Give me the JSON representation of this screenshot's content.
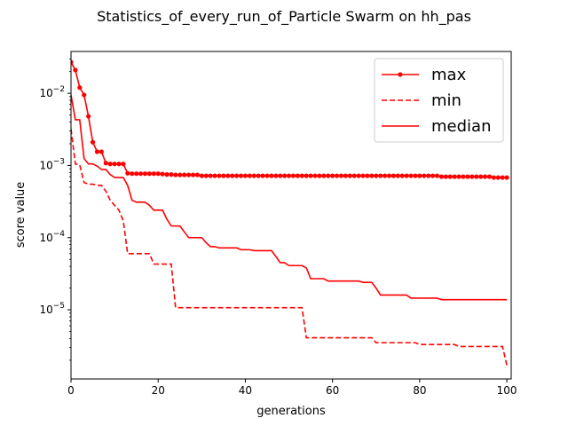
{
  "chart_data": {
    "type": "line",
    "title": "Statistics_of_every_run_of_Particle Swarm on hh_pas",
    "xlabel": "generations",
    "ylabel": "score value",
    "xlim": [
      0,
      101
    ],
    "ylim": [
      1.1e-06,
      0.038
    ],
    "yscale": "log",
    "grid": false,
    "legend_position": "top-right",
    "x_ticks": [
      "0",
      "20",
      "40",
      "60",
      "80",
      "100"
    ],
    "y_ticks": [
      "10^-5",
      "10^-4",
      "10^-3",
      "10^-2"
    ],
    "series": [
      {
        "name": "max",
        "color": "#ff0000",
        "style": "solid-marker",
        "points": [
          [
            0,
            0.027
          ],
          [
            1,
            0.021
          ],
          [
            2,
            0.012
          ],
          [
            3,
            0.0095
          ],
          [
            4,
            0.0048
          ],
          [
            5,
            0.0021
          ],
          [
            6,
            0.00155
          ],
          [
            7,
            0.00155
          ],
          [
            8,
            0.00108
          ],
          [
            9,
            0.00105
          ],
          [
            10,
            0.00105
          ],
          [
            11,
            0.00105
          ],
          [
            12,
            0.00105
          ],
          [
            13,
            0.00078
          ],
          [
            14,
            0.00077
          ],
          [
            15,
            0.00077
          ],
          [
            16,
            0.00077
          ],
          [
            17,
            0.00077
          ],
          [
            18,
            0.00077
          ],
          [
            19,
            0.00077
          ],
          [
            20,
            0.00077
          ],
          [
            21,
            0.00076
          ],
          [
            22,
            0.00075
          ],
          [
            23,
            0.00075
          ],
          [
            24,
            0.00074
          ],
          [
            25,
            0.00074
          ],
          [
            26,
            0.00074
          ],
          [
            27,
            0.00074
          ],
          [
            28,
            0.00074
          ],
          [
            29,
            0.00074
          ],
          [
            30,
            0.00072
          ],
          [
            31,
            0.00072
          ],
          [
            32,
            0.00072
          ],
          [
            33,
            0.00072
          ],
          [
            34,
            0.00072
          ],
          [
            35,
            0.00072
          ],
          [
            36,
            0.00072
          ],
          [
            37,
            0.00072
          ],
          [
            38,
            0.00072
          ],
          [
            39,
            0.00072
          ],
          [
            40,
            0.00072
          ],
          [
            41,
            0.00072
          ],
          [
            42,
            0.00072
          ],
          [
            43,
            0.00072
          ],
          [
            44,
            0.00072
          ],
          [
            45,
            0.00072
          ],
          [
            46,
            0.00072
          ],
          [
            47,
            0.00072
          ],
          [
            48,
            0.00072
          ],
          [
            49,
            0.00072
          ],
          [
            50,
            0.00072
          ],
          [
            51,
            0.00072
          ],
          [
            52,
            0.00072
          ],
          [
            53,
            0.00072
          ],
          [
            54,
            0.00072
          ],
          [
            55,
            0.00072
          ],
          [
            56,
            0.00072
          ],
          [
            57,
            0.00072
          ],
          [
            58,
            0.00072
          ],
          [
            59,
            0.00072
          ],
          [
            60,
            0.00072
          ],
          [
            61,
            0.00072
          ],
          [
            62,
            0.00072
          ],
          [
            63,
            0.00072
          ],
          [
            64,
            0.00072
          ],
          [
            65,
            0.00072
          ],
          [
            66,
            0.00072
          ],
          [
            67,
            0.00072
          ],
          [
            68,
            0.00072
          ],
          [
            69,
            0.00072
          ],
          [
            70,
            0.00072
          ],
          [
            71,
            0.00072
          ],
          [
            72,
            0.00072
          ],
          [
            73,
            0.00072
          ],
          [
            74,
            0.00072
          ],
          [
            75,
            0.00072
          ],
          [
            76,
            0.00072
          ],
          [
            77,
            0.00072
          ],
          [
            78,
            0.00072
          ],
          [
            79,
            0.00072
          ],
          [
            80,
            0.00072
          ],
          [
            81,
            0.00072
          ],
          [
            82,
            0.00072
          ],
          [
            83,
            0.00072
          ],
          [
            84,
            0.00072
          ],
          [
            85,
            0.0007
          ],
          [
            86,
            0.0007
          ],
          [
            87,
            0.0007
          ],
          [
            88,
            0.0007
          ],
          [
            89,
            0.0007
          ],
          [
            90,
            0.0007
          ],
          [
            91,
            0.0007
          ],
          [
            92,
            0.0007
          ],
          [
            93,
            0.0007
          ],
          [
            94,
            0.0007
          ],
          [
            95,
            0.0007
          ],
          [
            96,
            0.0007
          ],
          [
            97,
            0.00068
          ],
          [
            98,
            0.00068
          ],
          [
            99,
            0.00068
          ],
          [
            100,
            0.00068
          ]
        ]
      },
      {
        "name": "min",
        "color": "#ff0000",
        "style": "dashed",
        "points": [
          [
            0,
            0.0032
          ],
          [
            1,
            0.00105
          ],
          [
            2,
            0.00102
          ],
          [
            3,
            0.00058
          ],
          [
            4,
            0.00055
          ],
          [
            5,
            0.00055
          ],
          [
            6,
            0.00053
          ],
          [
            7,
            0.00053
          ],
          [
            8,
            0.00044
          ],
          [
            9,
            0.00033
          ],
          [
            10,
            0.00028
          ],
          [
            11,
            0.00024
          ],
          [
            12,
            0.00017
          ],
          [
            13,
            6e-05
          ],
          [
            14,
            6e-05
          ],
          [
            15,
            6e-05
          ],
          [
            16,
            6e-05
          ],
          [
            17,
            6e-05
          ],
          [
            18,
            6e-05
          ],
          [
            19,
            4.3e-05
          ],
          [
            20,
            4.3e-05
          ],
          [
            21,
            4.3e-05
          ],
          [
            22,
            4.3e-05
          ],
          [
            23,
            4.3e-05
          ],
          [
            24,
            1.07e-05
          ],
          [
            25,
            1.07e-05
          ],
          [
            26,
            1.07e-05
          ],
          [
            27,
            1.07e-05
          ],
          [
            28,
            1.07e-05
          ],
          [
            29,
            1.07e-05
          ],
          [
            30,
            1.07e-05
          ],
          [
            31,
            1.07e-05
          ],
          [
            32,
            1.07e-05
          ],
          [
            33,
            1.07e-05
          ],
          [
            34,
            1.07e-05
          ],
          [
            35,
            1.07e-05
          ],
          [
            36,
            1.07e-05
          ],
          [
            37,
            1.07e-05
          ],
          [
            38,
            1.07e-05
          ],
          [
            39,
            1.07e-05
          ],
          [
            40,
            1.07e-05
          ],
          [
            41,
            1.07e-05
          ],
          [
            42,
            1.07e-05
          ],
          [
            43,
            1.07e-05
          ],
          [
            44,
            1.07e-05
          ],
          [
            45,
            1.07e-05
          ],
          [
            46,
            1.07e-05
          ],
          [
            47,
            1.07e-05
          ],
          [
            48,
            1.07e-05
          ],
          [
            49,
            1.07e-05
          ],
          [
            50,
            1.07e-05
          ],
          [
            51,
            1.07e-05
          ],
          [
            52,
            1.07e-05
          ],
          [
            53,
            1.07e-05
          ],
          [
            54,
            4.1e-06
          ],
          [
            55,
            4.1e-06
          ],
          [
            56,
            4.1e-06
          ],
          [
            57,
            4.1e-06
          ],
          [
            58,
            4.1e-06
          ],
          [
            59,
            4.1e-06
          ],
          [
            60,
            4.1e-06
          ],
          [
            61,
            4.1e-06
          ],
          [
            62,
            4.1e-06
          ],
          [
            63,
            4.1e-06
          ],
          [
            64,
            4.1e-06
          ],
          [
            65,
            4.1e-06
          ],
          [
            66,
            4.1e-06
          ],
          [
            67,
            4.1e-06
          ],
          [
            68,
            4.1e-06
          ],
          [
            69,
            4.1e-06
          ],
          [
            70,
            3.5e-06
          ],
          [
            71,
            3.5e-06
          ],
          [
            72,
            3.5e-06
          ],
          [
            73,
            3.5e-06
          ],
          [
            74,
            3.5e-06
          ],
          [
            75,
            3.5e-06
          ],
          [
            76,
            3.5e-06
          ],
          [
            77,
            3.5e-06
          ],
          [
            78,
            3.5e-06
          ],
          [
            79,
            3.5e-06
          ],
          [
            80,
            3.3e-06
          ],
          [
            81,
            3.3e-06
          ],
          [
            82,
            3.3e-06
          ],
          [
            83,
            3.3e-06
          ],
          [
            84,
            3.3e-06
          ],
          [
            85,
            3.3e-06
          ],
          [
            86,
            3.3e-06
          ],
          [
            87,
            3.3e-06
          ],
          [
            88,
            3.3e-06
          ],
          [
            89,
            3.1e-06
          ],
          [
            90,
            3.1e-06
          ],
          [
            91,
            3.1e-06
          ],
          [
            92,
            3.1e-06
          ],
          [
            93,
            3.1e-06
          ],
          [
            94,
            3.1e-06
          ],
          [
            95,
            3.1e-06
          ],
          [
            96,
            3.1e-06
          ],
          [
            97,
            3.1e-06
          ],
          [
            98,
            3.1e-06
          ],
          [
            99,
            3.1e-06
          ],
          [
            100,
            1.7e-06
          ]
        ]
      },
      {
        "name": "median",
        "color": "#ff0000",
        "style": "solid",
        "points": [
          [
            0,
            0.0095
          ],
          [
            1,
            0.0043
          ],
          [
            2,
            0.0043
          ],
          [
            3,
            0.00125
          ],
          [
            4,
            0.00105
          ],
          [
            5,
            0.00105
          ],
          [
            6,
            0.00098
          ],
          [
            7,
            0.00088
          ],
          [
            8,
            0.00088
          ],
          [
            9,
            0.00075
          ],
          [
            10,
            0.00068
          ],
          [
            11,
            0.00068
          ],
          [
            12,
            0.00068
          ],
          [
            13,
            0.00053
          ],
          [
            14,
            0.00033
          ],
          [
            15,
            0.00031
          ],
          [
            16,
            0.00031
          ],
          [
            17,
            0.00031
          ],
          [
            18,
            0.00028
          ],
          [
            19,
            0.00024
          ],
          [
            20,
            0.00024
          ],
          [
            21,
            0.00024
          ],
          [
            22,
            0.00018
          ],
          [
            23,
            0.000145
          ],
          [
            24,
            0.000145
          ],
          [
            25,
            0.000145
          ],
          [
            26,
            0.00012
          ],
          [
            27,
            0.0001
          ],
          [
            28,
            0.0001
          ],
          [
            29,
            0.0001
          ],
          [
            30,
            0.0001
          ],
          [
            31,
            8.5e-05
          ],
          [
            32,
            7.5e-05
          ],
          [
            33,
            7.5e-05
          ],
          [
            34,
            7.2e-05
          ],
          [
            35,
            7.2e-05
          ],
          [
            36,
            7.2e-05
          ],
          [
            37,
            7.2e-05
          ],
          [
            38,
            7.2e-05
          ],
          [
            39,
            6.8e-05
          ],
          [
            40,
            6.8e-05
          ],
          [
            41,
            6.8e-05
          ],
          [
            42,
            6.6e-05
          ],
          [
            43,
            6.6e-05
          ],
          [
            44,
            6.6e-05
          ],
          [
            45,
            6.6e-05
          ],
          [
            46,
            6.6e-05
          ],
          [
            47,
            5.5e-05
          ],
          [
            48,
            4.5e-05
          ],
          [
            49,
            4.5e-05
          ],
          [
            50,
            4.1e-05
          ],
          [
            51,
            4.1e-05
          ],
          [
            52,
            4.1e-05
          ],
          [
            53,
            4.1e-05
          ],
          [
            54,
            3.8e-05
          ],
          [
            55,
            2.7e-05
          ],
          [
            56,
            2.7e-05
          ],
          [
            57,
            2.7e-05
          ],
          [
            58,
            2.7e-05
          ],
          [
            59,
            2.5e-05
          ],
          [
            60,
            2.5e-05
          ],
          [
            61,
            2.5e-05
          ],
          [
            62,
            2.5e-05
          ],
          [
            63,
            2.5e-05
          ],
          [
            64,
            2.5e-05
          ],
          [
            65,
            2.5e-05
          ],
          [
            66,
            2.5e-05
          ],
          [
            67,
            2.4e-05
          ],
          [
            68,
            2.4e-05
          ],
          [
            69,
            2.4e-05
          ],
          [
            70,
            2e-05
          ],
          [
            71,
            1.6e-05
          ],
          [
            72,
            1.6e-05
          ],
          [
            73,
            1.6e-05
          ],
          [
            74,
            1.6e-05
          ],
          [
            75,
            1.6e-05
          ],
          [
            76,
            1.6e-05
          ],
          [
            77,
            1.6e-05
          ],
          [
            78,
            1.45e-05
          ],
          [
            79,
            1.45e-05
          ],
          [
            80,
            1.45e-05
          ],
          [
            81,
            1.45e-05
          ],
          [
            82,
            1.45e-05
          ],
          [
            83,
            1.45e-05
          ],
          [
            84,
            1.45e-05
          ],
          [
            85,
            1.38e-05
          ],
          [
            86,
            1.38e-05
          ],
          [
            87,
            1.38e-05
          ],
          [
            88,
            1.38e-05
          ],
          [
            89,
            1.38e-05
          ],
          [
            90,
            1.38e-05
          ],
          [
            91,
            1.38e-05
          ],
          [
            92,
            1.38e-05
          ],
          [
            93,
            1.38e-05
          ],
          [
            94,
            1.38e-05
          ],
          [
            95,
            1.38e-05
          ],
          [
            96,
            1.38e-05
          ],
          [
            97,
            1.38e-05
          ],
          [
            98,
            1.38e-05
          ],
          [
            99,
            1.38e-05
          ],
          [
            100,
            1.38e-05
          ]
        ]
      }
    ]
  }
}
